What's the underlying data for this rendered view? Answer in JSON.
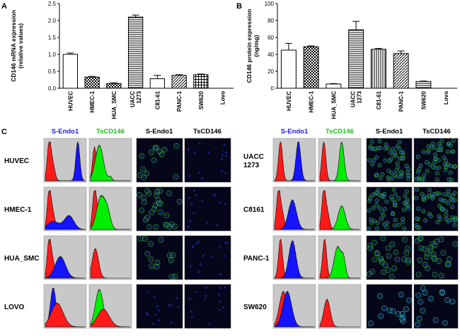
{
  "chart_data": [
    {
      "panel": "A",
      "type": "bar",
      "ylabel": "CD146 mRNA expression\n(relative values)",
      "ylim": [
        0,
        2.5
      ],
      "yticks": [
        "0.0",
        "0.5",
        "1.0",
        "1.5",
        "2.0",
        "2.5"
      ],
      "categories": [
        "HUVEC",
        "HMEC-1",
        "HUA_SMC",
        "UACC\n1273",
        "C81-61",
        "PANC-1",
        "SW620",
        "Lovo"
      ],
      "values": [
        1.0,
        0.33,
        0.14,
        2.1,
        0.28,
        0.38,
        0.4,
        0.0
      ],
      "errors": [
        0.04,
        0.02,
        0.02,
        0.06,
        0.1,
        0.02,
        0.02,
        0.0
      ],
      "patterns": [
        "open",
        "check",
        "check",
        "hstripe",
        "open",
        "diag",
        "grid",
        "open"
      ]
    },
    {
      "panel": "B",
      "type": "bar",
      "ylabel": "CD146 protein expression\n(ng/mg)",
      "ylim": [
        0,
        100
      ],
      "yticks": [
        "0",
        "20",
        "40",
        "60",
        "80",
        "100"
      ],
      "categories": [
        "HUVEC",
        "HMEC-1",
        "HUA_SMC",
        "UACC\n1273",
        "C81-61",
        "PANC-1",
        "SW620",
        "Lovo"
      ],
      "values": [
        45,
        49,
        5,
        69,
        46,
        41,
        8,
        0
      ],
      "errors": [
        8,
        1,
        0.5,
        10,
        1,
        3,
        0.5,
        0
      ],
      "patterns": [
        "open",
        "check",
        "open",
        "hstripe",
        "vstripe",
        "diag",
        "hstripe",
        "open"
      ]
    }
  ],
  "panel_c": {
    "label": "C",
    "headers_left": {
      "s_endo1": "S-Endo1",
      "tscd146": "TsCD146",
      "s_endo1_img": "S-Endo1",
      "tscd146_img": "TsCD146"
    },
    "headers_right": {
      "s_endo1": "S-Endo1",
      "tscd146": "TsCD146",
      "s_endo1_img": "S-Endo1",
      "tscd146_img": "TsCD146"
    },
    "rows_left": [
      "HUVEC",
      "HMEC-1",
      "HUA_SMC",
      "LOVO"
    ],
    "rows_right": [
      "UACC\n1273",
      "C8161",
      "PANC-1",
      "SW620"
    ],
    "colors": {
      "blue_header": "#1f1fd6",
      "green_header": "#1fbf1f",
      "histogram_red": "#ff1a1a",
      "histogram_blue": "#1414ff",
      "histogram_green": "#00ee00",
      "histogram_bg": "#c8c8c8"
    }
  }
}
